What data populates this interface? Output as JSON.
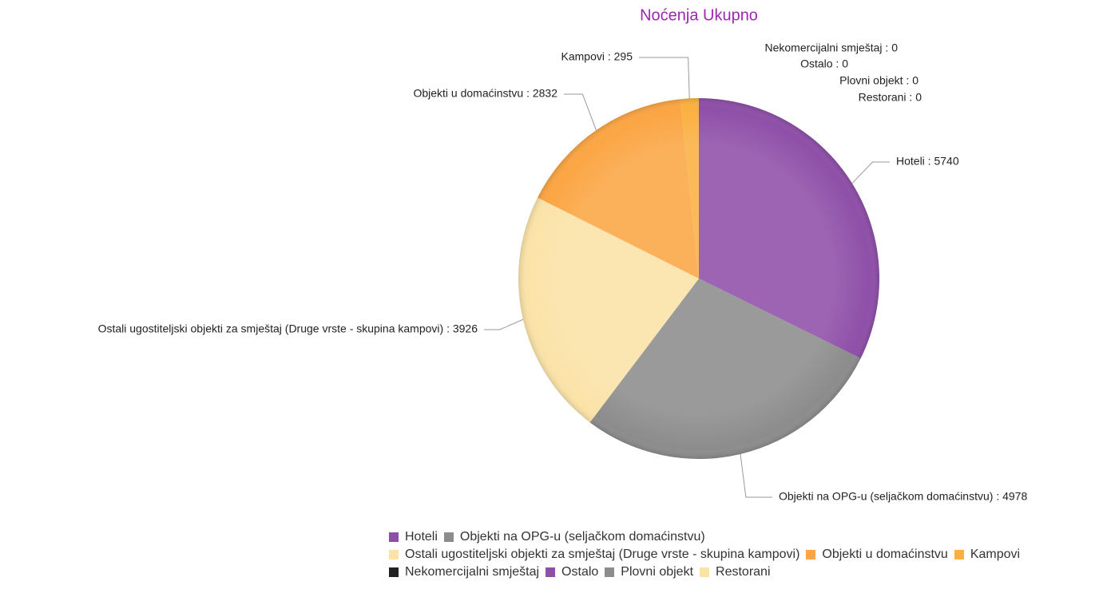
{
  "chart_data": {
    "type": "pie",
    "title": "Noćenja Ukupno",
    "categories": [
      "Hoteli",
      "Objekti na OPG-u (seljačkom domaćinstvu)",
      "Ostali ugostiteljski objekti za smještaj (Druge vrste - skupina kampovi)",
      "Objekti u domaćinstvu",
      "Kampovi",
      "Nekomercijalni smještaj",
      "Ostalo",
      "Plovni objekt",
      "Restorani"
    ],
    "values": [
      5740,
      4978,
      3926,
      2832,
      295,
      0,
      0,
      0,
      0
    ],
    "value_labels": [
      "Hoteli : 5740",
      "Objekti na OPG-u (seljačkom domaćinstvu) : 4978",
      "Ostali ugostiteljski objekti za smještaj (Druge vrste - skupina kampovi) : 3926",
      "Objekti u domaćinstvu : 2832",
      "Kampovi : 295",
      "Nekomercijalni smještaj : 0",
      "Ostalo : 0",
      "Plovni objekt : 0",
      "Restorani : 0"
    ],
    "colors": [
      "#8e4fa8",
      "#8c8c8c",
      "#fbe3a8",
      "#fba543",
      "#fbb040",
      "#222222",
      "#8e4fa8",
      "#8c8c8c",
      "#fbe3a8"
    ],
    "legend": "bottom"
  }
}
